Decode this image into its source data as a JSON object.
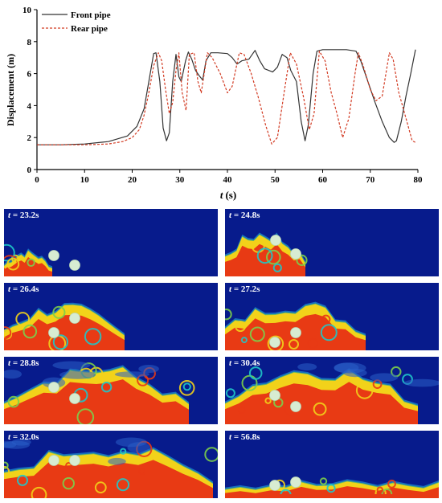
{
  "chart_data": {
    "type": "line",
    "xlabel_var": "t",
    "xlabel_unit": "(s)",
    "ylabel": "Displacement (m)",
    "xlim": [
      0,
      80
    ],
    "ylim": [
      0,
      10
    ],
    "xticks": [
      "0",
      "10",
      "20",
      "30",
      "40",
      "50",
      "60",
      "70",
      "80"
    ],
    "yticks": [
      "0",
      "2",
      "4",
      "6",
      "8",
      "10"
    ],
    "grid": false,
    "legend": "top-left",
    "series": [
      {
        "name": "Front pipe",
        "color": "#333333",
        "style": "solid",
        "points": [
          [
            0,
            1.55
          ],
          [
            5,
            1.55
          ],
          [
            10,
            1.6
          ],
          [
            15,
            1.75
          ],
          [
            19,
            2.1
          ],
          [
            21,
            2.7
          ],
          [
            22.5,
            3.8
          ],
          [
            23.5,
            5.5
          ],
          [
            24.5,
            7.25
          ],
          [
            25,
            7.3
          ],
          [
            25.8,
            5.5
          ],
          [
            26.5,
            2.6
          ],
          [
            27.2,
            1.8
          ],
          [
            27.8,
            2.3
          ],
          [
            28.5,
            5.5
          ],
          [
            29.2,
            7.2
          ],
          [
            29.8,
            5.8
          ],
          [
            30.3,
            5.5
          ],
          [
            31.2,
            6.8
          ],
          [
            31.8,
            7.35
          ],
          [
            32.5,
            6.9
          ],
          [
            33.3,
            6.2
          ],
          [
            34,
            5.9
          ],
          [
            34.8,
            5.6
          ],
          [
            35.5,
            6.8
          ],
          [
            36.5,
            7.3
          ],
          [
            38,
            7.3
          ],
          [
            40,
            7.25
          ],
          [
            41,
            7.0
          ],
          [
            42,
            6.6
          ],
          [
            43,
            6.8
          ],
          [
            44.5,
            6.9
          ],
          [
            45.8,
            7.45
          ],
          [
            46.8,
            6.8
          ],
          [
            47.8,
            6.3
          ],
          [
            49.5,
            6.1
          ],
          [
            50.5,
            6.4
          ],
          [
            51.5,
            7.2
          ],
          [
            52.5,
            7.0
          ],
          [
            53.3,
            6.2
          ],
          [
            54.5,
            5.5
          ],
          [
            55.5,
            3.0
          ],
          [
            56.3,
            1.8
          ],
          [
            57,
            2.8
          ],
          [
            58,
            6.0
          ],
          [
            58.8,
            7.4
          ],
          [
            60,
            7.5
          ],
          [
            65,
            7.5
          ],
          [
            67,
            7.4
          ],
          [
            68,
            6.8
          ],
          [
            69.5,
            5.5
          ],
          [
            71,
            4.2
          ],
          [
            72.5,
            3.0
          ],
          [
            74,
            2.0
          ],
          [
            75,
            1.7
          ],
          [
            75.5,
            1.8
          ],
          [
            76.5,
            3.0
          ],
          [
            77.5,
            4.6
          ],
          [
            78.5,
            6.0
          ],
          [
            79.5,
            7.5
          ]
        ]
      },
      {
        "name": "Rear pipe",
        "color": "#d23a22",
        "style": "dashed",
        "points": [
          [
            0,
            1.55
          ],
          [
            5,
            1.55
          ],
          [
            10,
            1.55
          ],
          [
            15,
            1.6
          ],
          [
            18,
            1.75
          ],
          [
            20,
            2.0
          ],
          [
            21.5,
            2.5
          ],
          [
            22.5,
            3.4
          ],
          [
            23.5,
            4.8
          ],
          [
            24.5,
            6.5
          ],
          [
            25.5,
            7.3
          ],
          [
            26.2,
            6.8
          ],
          [
            27,
            5.0
          ],
          [
            27.8,
            3.5
          ],
          [
            28.5,
            4.2
          ],
          [
            29.2,
            6.2
          ],
          [
            29.8,
            7.3
          ],
          [
            30.5,
            4.8
          ],
          [
            31.3,
            3.7
          ],
          [
            32,
            7.2
          ],
          [
            33,
            7.3
          ],
          [
            33.8,
            5.5
          ],
          [
            34.5,
            4.8
          ],
          [
            35.8,
            7.3
          ],
          [
            36.8,
            7.0
          ],
          [
            38.5,
            6.0
          ],
          [
            40,
            4.8
          ],
          [
            41,
            5.2
          ],
          [
            42.5,
            7.3
          ],
          [
            43.5,
            7.2
          ],
          [
            45,
            6.0
          ],
          [
            46.5,
            4.5
          ],
          [
            48,
            2.8
          ],
          [
            49.3,
            1.6
          ],
          [
            50.5,
            2.0
          ],
          [
            52,
            5.0
          ],
          [
            53.2,
            7.3
          ],
          [
            54.5,
            6.6
          ],
          [
            56,
            4.5
          ],
          [
            57.2,
            2.5
          ],
          [
            58.2,
            3.5
          ],
          [
            59.3,
            7.4
          ],
          [
            60.5,
            6.8
          ],
          [
            61.8,
            4.8
          ],
          [
            63,
            3.5
          ],
          [
            64.2,
            2.0
          ],
          [
            65.5,
            3.2
          ],
          [
            66.8,
            6.0
          ],
          [
            67.5,
            7.3
          ],
          [
            68.5,
            6.5
          ],
          [
            70,
            5.0
          ],
          [
            71.2,
            4.3
          ],
          [
            72.5,
            4.6
          ],
          [
            74,
            7.3
          ],
          [
            74.8,
            6.9
          ],
          [
            76,
            4.8
          ],
          [
            77.5,
            3.2
          ],
          [
            78.8,
            1.8
          ],
          [
            79.5,
            1.7
          ]
        ]
      }
    ]
  },
  "snapshots": [
    {
      "var": "t",
      "value": " = 23.2s"
    },
    {
      "var": "t",
      "value": " = 24.8s"
    },
    {
      "var": "t",
      "value": " = 26.4s"
    },
    {
      "var": "t",
      "value": " = 27.2s"
    },
    {
      "var": "t",
      "value": " = 28.8s"
    },
    {
      "var": "t",
      "value": " = 30.4s"
    },
    {
      "var": "t",
      "value": " = 32.0s"
    },
    {
      "var": "t",
      "value": " = 56.8s"
    }
  ]
}
